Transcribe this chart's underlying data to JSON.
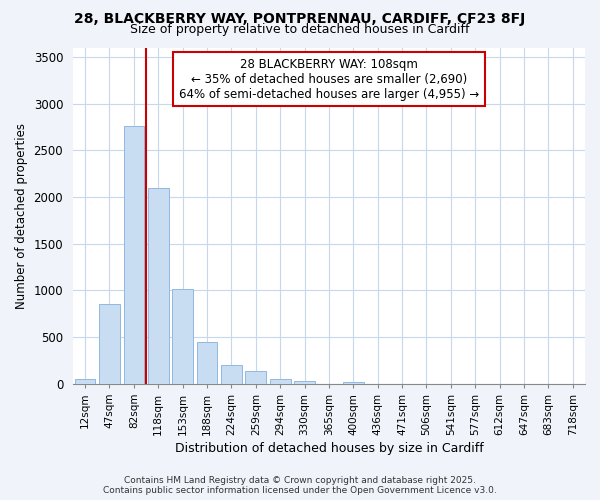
{
  "title_line1": "28, BLACKBERRY WAY, PONTPRENNAU, CARDIFF, CF23 8FJ",
  "title_line2": "Size of property relative to detached houses in Cardiff",
  "xlabel": "Distribution of detached houses by size in Cardiff",
  "ylabel": "Number of detached properties",
  "categories": [
    "12sqm",
    "47sqm",
    "82sqm",
    "118sqm",
    "153sqm",
    "188sqm",
    "224sqm",
    "259sqm",
    "294sqm",
    "330sqm",
    "365sqm",
    "400sqm",
    "436sqm",
    "471sqm",
    "506sqm",
    "541sqm",
    "577sqm",
    "612sqm",
    "647sqm",
    "683sqm",
    "718sqm"
  ],
  "values": [
    55,
    850,
    2760,
    2100,
    1020,
    450,
    200,
    140,
    55,
    35,
    0,
    20,
    0,
    0,
    0,
    0,
    0,
    0,
    0,
    0,
    0
  ],
  "bar_color": "#c8ddf2",
  "bar_edgecolor": "#92b8e0",
  "grid_color": "#c8d8ec",
  "property_line_index": 3,
  "property_line_color": "#cc0000",
  "annotation_text": "28 BLACKBERRY WAY: 108sqm\n← 35% of detached houses are smaller (2,690)\n64% of semi-detached houses are larger (4,955) →",
  "annotation_box_edgecolor": "#cc0000",
  "annotation_box_facecolor": "#ffffff",
  "ylim": [
    0,
    3600
  ],
  "yticks": [
    0,
    500,
    1000,
    1500,
    2000,
    2500,
    3000,
    3500
  ],
  "footnote": "Contains HM Land Registry data © Crown copyright and database right 2025.\nContains public sector information licensed under the Open Government Licence v3.0.",
  "background_color": "#ffffff",
  "fig_background_color": "#f0f4fa"
}
